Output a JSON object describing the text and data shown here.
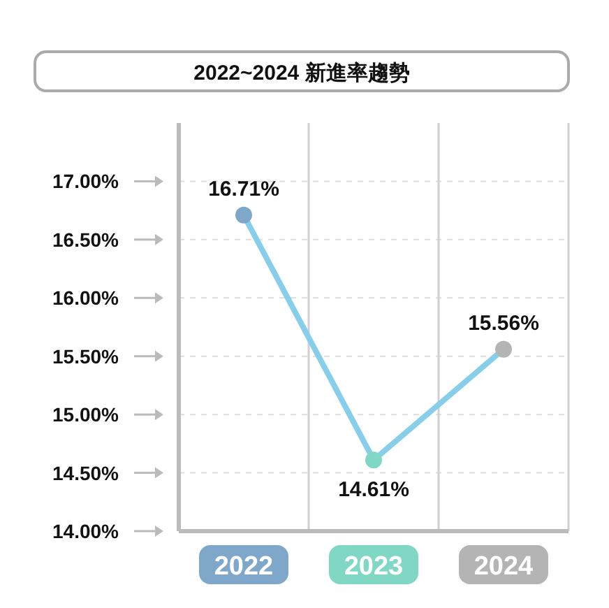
{
  "chart_data": {
    "type": "line",
    "title": "2022~2024 新進率趨勢",
    "categories": [
      "2022",
      "2023",
      "2024"
    ],
    "series": [
      {
        "color": "#87ceeb",
        "colors": [
          "#7fa7c9",
          "#80d8c4",
          "#b4b4b4"
        ],
        "values": [
          16.71,
          14.61,
          15.56
        ],
        "value_labels": [
          "16.71%",
          "14.61%",
          "15.56%"
        ]
      }
    ],
    "ylim": [
      14,
      17.5
    ],
    "yticks": [
      {
        "value": 14,
        "label": "14.00%"
      },
      {
        "value": 14.5,
        "label": "14.50%"
      },
      {
        "value": 15,
        "label": "15.00%"
      },
      {
        "value": 15.5,
        "label": "15.50%"
      },
      {
        "value": 16,
        "label": "16.00%"
      },
      {
        "value": 16.5,
        "label": "16.50%"
      },
      {
        "value": 17,
        "label": "17.00%"
      }
    ],
    "grid": true,
    "marker": "circle"
  }
}
